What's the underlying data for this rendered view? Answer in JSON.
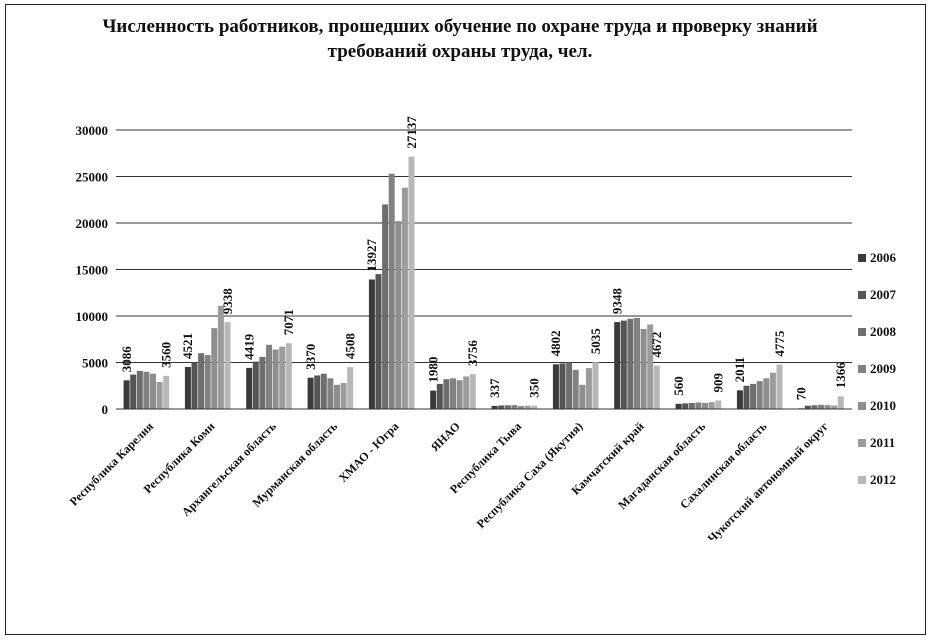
{
  "chart_data": {
    "type": "bar",
    "title": "Численность работников, прошедших обучение по охране труда  и проверку знаний требований охраны труда, чел.",
    "xlabel": "",
    "ylabel": "",
    "ylim": [
      0,
      30000
    ],
    "yticks": [
      0,
      5000,
      10000,
      15000,
      20000,
      25000,
      30000
    ],
    "grid": true,
    "legend_position": "right",
    "categories": [
      "Республика Карелия",
      "Республика Коми",
      "Архангельская область",
      "Мурманская область",
      "ХМАО - Югра",
      "ЯНАО",
      "Республика Тыва",
      "Республика Саха (Якутия)",
      "Камчатский край",
      "Магаданская область",
      "Сахалинская область",
      "Чукотский автономный округ"
    ],
    "series": [
      {
        "name": "2006",
        "color": "#3a3a3a",
        "values": [
          3086,
          4521,
          4419,
          3370,
          13927,
          1980,
          337,
          4802,
          9348,
          560,
          2011,
          70
        ]
      },
      {
        "name": "2007",
        "color": "#555555",
        "values": [
          3700,
          5000,
          5100,
          3600,
          14500,
          2700,
          380,
          4900,
          9500,
          600,
          2500,
          350
        ]
      },
      {
        "name": "2008",
        "color": "#6e6e6e",
        "values": [
          4100,
          6000,
          5600,
          3800,
          22000,
          3200,
          400,
          5000,
          9700,
          650,
          2700,
          400
        ]
      },
      {
        "name": "2009",
        "color": "#828282",
        "values": [
          4000,
          5800,
          6900,
          3300,
          25300,
          3300,
          420,
          4200,
          9800,
          700,
          3000,
          450
        ]
      },
      {
        "name": "2010",
        "color": "#8e8e8e",
        "values": [
          3800,
          8700,
          6400,
          2600,
          20200,
          3100,
          330,
          2600,
          8600,
          650,
          3300,
          420
        ]
      },
      {
        "name": "2011",
        "color": "#9c9c9c",
        "values": [
          2900,
          11100,
          6700,
          2800,
          23800,
          3500,
          360,
          4400,
          9100,
          740,
          3900,
          380
        ]
      },
      {
        "name": "2012",
        "color": "#b8b8b8",
        "values": [
          3560,
          9338,
          7071,
          4508,
          27137,
          3756,
          350,
          5035,
          4672,
          909,
          4775,
          1366
        ]
      }
    ],
    "data_labels": [
      {
        "category": 0,
        "series": "2006",
        "text": "3086"
      },
      {
        "category": 0,
        "series": "2012",
        "text": "3560"
      },
      {
        "category": 1,
        "series": "2006",
        "text": "4521"
      },
      {
        "category": 1,
        "series": "2012",
        "text": "9338"
      },
      {
        "category": 2,
        "series": "2006",
        "text": "4419"
      },
      {
        "category": 2,
        "series": "2012",
        "text": "7071"
      },
      {
        "category": 3,
        "series": "2006",
        "text": "3370"
      },
      {
        "category": 3,
        "series": "2012",
        "text": "4508"
      },
      {
        "category": 4,
        "series": "2006",
        "text": "13927"
      },
      {
        "category": 4,
        "series": "2012",
        "text": "27137"
      },
      {
        "category": 5,
        "series": "2006",
        "text": "1980"
      },
      {
        "category": 5,
        "series": "2012",
        "text": "3756"
      },
      {
        "category": 6,
        "series": "2006",
        "text": "337"
      },
      {
        "category": 6,
        "series": "2012",
        "text": "350"
      },
      {
        "category": 7,
        "series": "2006",
        "text": "4802"
      },
      {
        "category": 7,
        "series": "2012",
        "text": "5035"
      },
      {
        "category": 8,
        "series": "2006",
        "text": "9348"
      },
      {
        "category": 8,
        "series": "2012",
        "text": "4672"
      },
      {
        "category": 9,
        "series": "2006",
        "text": "560"
      },
      {
        "category": 9,
        "series": "2012",
        "text": "909"
      },
      {
        "category": 10,
        "series": "2006",
        "text": "2011"
      },
      {
        "category": 10,
        "series": "2012",
        "text": "4775"
      },
      {
        "category": 11,
        "series": "2006",
        "text": "70"
      },
      {
        "category": 11,
        "series": "2012",
        "text": "1366"
      }
    ]
  }
}
